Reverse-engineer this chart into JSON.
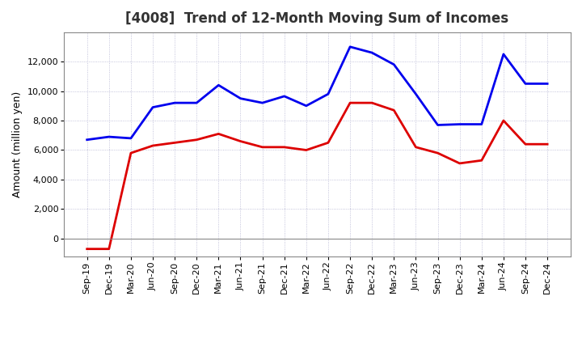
{
  "title": "[4008]  Trend of 12-Month Moving Sum of Incomes",
  "ylabel": "Amount (million yen)",
  "background_color": "#ffffff",
  "grid_color": "#aaaacc",
  "x_labels": [
    "Sep-19",
    "Dec-19",
    "Mar-20",
    "Jun-20",
    "Sep-20",
    "Dec-20",
    "Mar-21",
    "Jun-21",
    "Sep-21",
    "Dec-21",
    "Mar-22",
    "Jun-22",
    "Sep-22",
    "Dec-22",
    "Mar-23",
    "Jun-23",
    "Sep-23",
    "Dec-23",
    "Mar-24",
    "Jun-24",
    "Sep-24",
    "Dec-24"
  ],
  "ordinary_income": [
    6700,
    6900,
    6800,
    8900,
    9200,
    9200,
    10400,
    9500,
    9200,
    9650,
    9000,
    9800,
    13000,
    12600,
    11800,
    9800,
    7700,
    7750,
    7750,
    12500,
    10500,
    10500
  ],
  "net_income": [
    -700,
    -700,
    5800,
    6300,
    6500,
    6700,
    7100,
    6600,
    6200,
    6200,
    6000,
    6500,
    9200,
    9200,
    8700,
    6200,
    5800,
    5100,
    5300,
    8000,
    6400,
    6400
  ],
  "ordinary_color": "#0000ee",
  "net_color": "#dd0000",
  "ylim_min": -1200,
  "ylim_max": 14000,
  "yticks": [
    0,
    2000,
    4000,
    6000,
    8000,
    10000,
    12000
  ],
  "line_width": 2.0,
  "title_color": "#333333",
  "title_fontsize": 12,
  "axis_fontsize": 8,
  "ylabel_fontsize": 9
}
